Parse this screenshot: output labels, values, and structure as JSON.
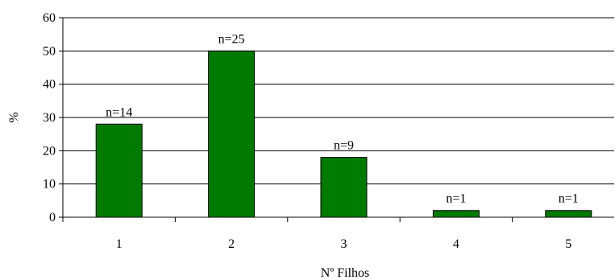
{
  "chart_data": {
    "type": "bar",
    "title": "",
    "xlabel": "Nº Filhos",
    "ylabel": "%",
    "categories": [
      "1",
      "2",
      "3",
      "4",
      "5"
    ],
    "values": [
      28,
      50,
      18,
      2,
      2
    ],
    "data_labels": [
      "n=14",
      "n=25",
      "n=9",
      "n=1",
      "n=1"
    ],
    "ylim": [
      0,
      60
    ],
    "yticks": [
      "0",
      "10",
      "20",
      "30",
      "40",
      "50",
      "60"
    ],
    "grid": true,
    "legend": "none",
    "bar_color": "#007a00"
  }
}
